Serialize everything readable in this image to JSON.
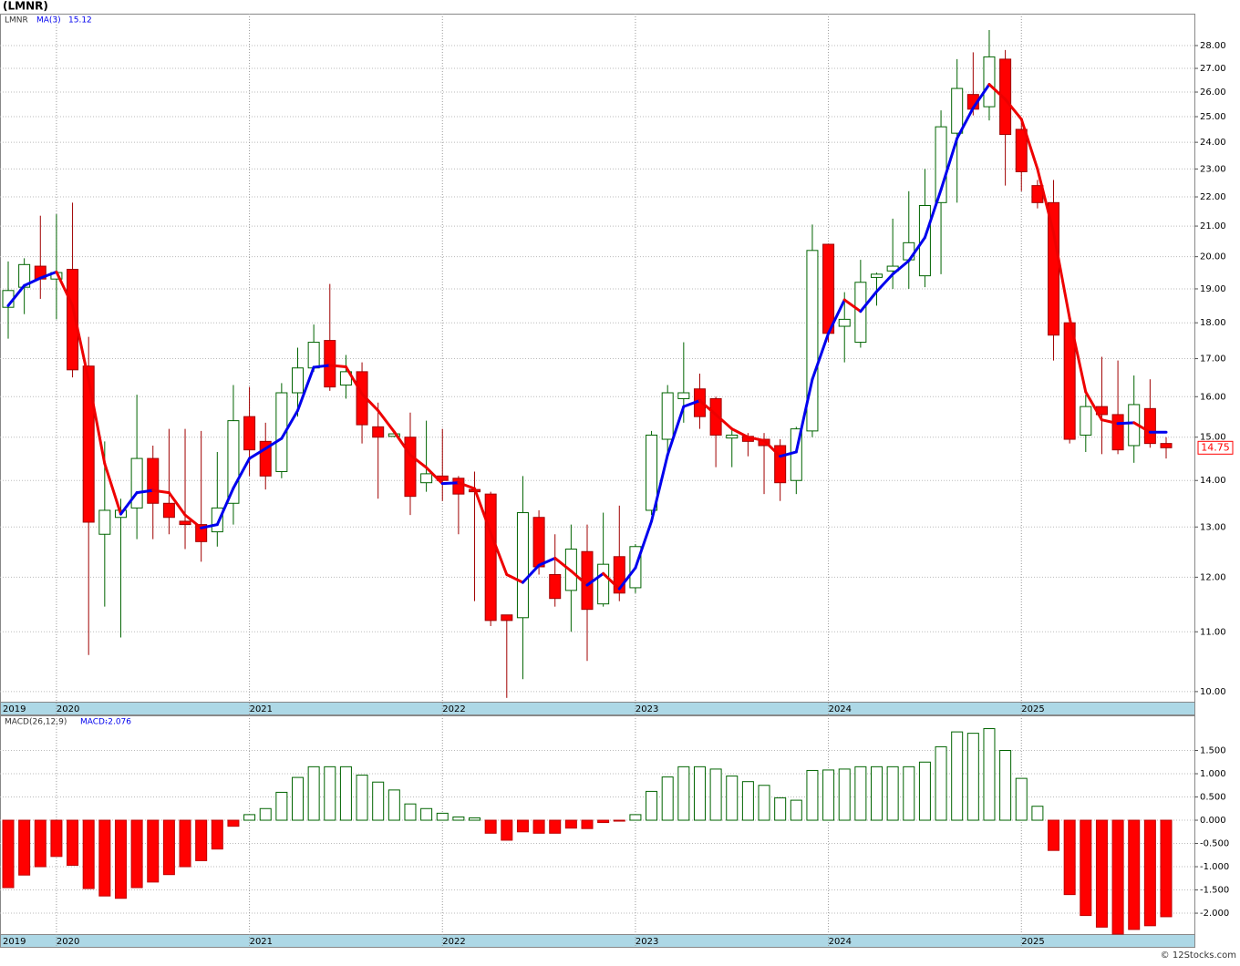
{
  "chart_data": [
    {
      "type": "candlestick",
      "title": "(LMNR)",
      "ticker": "LMNR",
      "log": true,
      "grid": true,
      "up_color": "#006400",
      "down_color": "#ff0000",
      "categories": [
        "2019",
        null,
        null,
        "2020",
        null,
        null,
        null,
        null,
        null,
        null,
        null,
        null,
        null,
        null,
        null,
        "2021",
        null,
        null,
        null,
        null,
        null,
        null,
        null,
        null,
        null,
        null,
        null,
        "2022",
        null,
        null,
        null,
        null,
        null,
        null,
        null,
        null,
        null,
        null,
        null,
        "2023",
        null,
        null,
        null,
        null,
        null,
        null,
        null,
        null,
        null,
        null,
        null,
        "2024",
        null,
        null,
        null,
        null,
        null,
        null,
        null,
        null,
        null,
        null,
        null,
        "2025",
        null,
        null,
        null,
        null,
        null,
        null,
        null,
        null,
        null
      ],
      "open": [
        18.45,
        19.05,
        19.7,
        19.3,
        19.6,
        16.8,
        12.85,
        13.2,
        13.4,
        14.5,
        13.5,
        13.12,
        13.05,
        12.9,
        13.5,
        15.5,
        14.9,
        14.2,
        16.1,
        16.75,
        17.5,
        16.3,
        16.65,
        15.25,
        15.02,
        15.0,
        13.95,
        14.1,
        14.05,
        13.8,
        13.7,
        11.3,
        11.25,
        13.2,
        12.05,
        11.75,
        12.5,
        11.5,
        12.4,
        11.8,
        13.35,
        14.95,
        15.95,
        16.2,
        15.95,
        14.98,
        15.02,
        14.95,
        14.8,
        14.0,
        15.15,
        20.4,
        17.9,
        17.45,
        19.35,
        19.55,
        19.9,
        19.4,
        21.8,
        24.35,
        25.9,
        25.4,
        27.4,
        24.5,
        22.4,
        21.8,
        18.0,
        15.05,
        15.75,
        15.55,
        14.8,
        15.7,
        14.85
      ],
      "high": [
        19.85,
        19.95,
        21.35,
        21.4,
        21.8,
        17.6,
        14.9,
        13.6,
        16.05,
        14.8,
        15.2,
        15.2,
        15.15,
        14.65,
        16.3,
        16.25,
        15.35,
        16.35,
        17.3,
        17.95,
        19.15,
        17.1,
        16.9,
        15.85,
        15.15,
        15.6,
        15.4,
        15.2,
        14.1,
        14.2,
        13.75,
        11.3,
        14.1,
        13.35,
        12.85,
        13.05,
        13.05,
        13.3,
        13.45,
        12.65,
        15.15,
        16.3,
        17.45,
        16.6,
        16.0,
        15.2,
        15.1,
        15.1,
        14.95,
        15.25,
        21.05,
        20.4,
        18.9,
        19.9,
        19.5,
        21.25,
        22.2,
        23.0,
        25.25,
        27.4,
        27.7,
        28.7,
        27.8,
        24.95,
        22.6,
        22.6,
        18.0,
        16.05,
        17.05,
        16.95,
        16.55,
        16.45,
        15.0
      ],
      "low": [
        17.55,
        18.25,
        18.7,
        18.1,
        16.5,
        10.6,
        11.45,
        10.9,
        12.75,
        12.75,
        12.85,
        12.55,
        12.3,
        12.6,
        13.05,
        14.1,
        13.8,
        14.05,
        15.5,
        16.65,
        16.15,
        15.95,
        14.85,
        13.6,
        15.0,
        13.25,
        13.75,
        13.55,
        12.85,
        11.55,
        11.1,
        9.9,
        10.2,
        12.05,
        11.45,
        11.0,
        10.5,
        11.45,
        11.55,
        11.7,
        13.25,
        14.55,
        15.35,
        15.2,
        14.3,
        14.3,
        14.55,
        13.7,
        13.55,
        13.7,
        15.0,
        17.45,
        16.9,
        17.3,
        18.5,
        19.0,
        19.0,
        19.05,
        19.45,
        21.8,
        25.05,
        24.85,
        22.4,
        22.2,
        21.6,
        16.95,
        14.85,
        14.65,
        14.6,
        14.6,
        14.4,
        14.75,
        14.5
      ],
      "close": [
        18.95,
        19.75,
        19.3,
        19.5,
        16.7,
        13.1,
        13.35,
        13.35,
        14.5,
        13.5,
        13.2,
        13.05,
        12.7,
        13.4,
        15.4,
        14.7,
        14.1,
        16.1,
        16.75,
        17.45,
        16.25,
        16.65,
        15.3,
        15.0,
        15.08,
        13.65,
        14.15,
        14.0,
        13.7,
        13.75,
        11.2,
        11.2,
        13.3,
        12.2,
        11.6,
        12.55,
        11.4,
        12.25,
        11.7,
        12.6,
        15.05,
        16.1,
        16.1,
        15.5,
        15.05,
        15.05,
        14.9,
        14.8,
        13.95,
        15.2,
        20.2,
        17.7,
        18.1,
        19.2,
        19.45,
        19.7,
        20.45,
        21.7,
        24.6,
        26.15,
        25.3,
        27.5,
        24.3,
        22.9,
        21.8,
        17.65,
        14.95,
        15.75,
        15.55,
        14.7,
        15.8,
        14.85,
        14.75
      ],
      "ma": {
        "name": "MA(3)",
        "up_color": "#0000ee",
        "down_color": "#ee0000",
        "values": [
          18.5,
          19.1,
          19.33,
          19.52,
          18.5,
          16.43,
          14.38,
          13.27,
          13.73,
          13.78,
          13.73,
          13.25,
          12.98,
          13.05,
          13.83,
          14.5,
          14.73,
          14.97,
          15.65,
          16.77,
          16.82,
          16.78,
          16.07,
          15.65,
          15.13,
          14.58,
          14.29,
          13.93,
          13.95,
          13.82,
          12.88,
          12.05,
          11.9,
          12.23,
          12.37,
          12.12,
          11.85,
          12.07,
          11.78,
          12.18,
          13.12,
          14.58,
          15.75,
          15.9,
          15.55,
          15.2,
          15.0,
          14.92,
          14.55,
          14.65,
          16.45,
          17.7,
          18.67,
          18.33,
          18.92,
          19.45,
          19.87,
          20.62,
          22.25,
          24.15,
          25.35,
          26.32,
          25.7,
          24.9,
          23.0,
          20.78,
          18.13,
          16.12,
          15.42,
          15.33,
          15.35,
          15.12,
          15.12
        ]
      },
      "ylim": [
        9.84,
        29.46
      ],
      "yticks": [
        {
          "value": 10,
          "label": "10.00"
        },
        {
          "value": 11,
          "label": "11.00"
        },
        {
          "value": 12,
          "label": "12.00"
        },
        {
          "value": 13,
          "label": "13.00"
        },
        {
          "value": 14,
          "label": "14.00"
        },
        {
          "value": 15,
          "label": "15.00"
        },
        {
          "value": 16,
          "label": "16.00"
        },
        {
          "value": 17,
          "label": "17.00"
        },
        {
          "value": 18,
          "label": "18.00"
        },
        {
          "value": 19,
          "label": "19.00"
        },
        {
          "value": 20,
          "label": "20.00"
        },
        {
          "value": 21,
          "label": "21.00"
        },
        {
          "value": 22,
          "label": "22.00"
        },
        {
          "value": 23,
          "label": "23.00"
        },
        {
          "value": 24,
          "label": "24.00"
        },
        {
          "value": 25,
          "label": "25.00"
        },
        {
          "value": 26,
          "label": "26.00"
        },
        {
          "value": 27,
          "label": "27.00"
        },
        {
          "value": 28,
          "label": "28.00"
        }
      ]
    },
    {
      "type": "bar",
      "title": "MACD(26,12,9)",
      "value_prefix": "MACD:",
      "grid": true,
      "up_color": "#006400",
      "down_color": "#ff0000",
      "categories": [
        "2019",
        null,
        null,
        "2020",
        null,
        null,
        null,
        null,
        null,
        null,
        null,
        null,
        null,
        null,
        null,
        "2021",
        null,
        null,
        null,
        null,
        null,
        null,
        null,
        null,
        null,
        null,
        null,
        "2022",
        null,
        null,
        null,
        null,
        null,
        null,
        null,
        null,
        null,
        null,
        null,
        "2023",
        null,
        null,
        null,
        null,
        null,
        null,
        null,
        null,
        null,
        null,
        null,
        "2024",
        null,
        null,
        null,
        null,
        null,
        null,
        null,
        null,
        null,
        null,
        null,
        "2025",
        null,
        null,
        null,
        null,
        null,
        null,
        null,
        null,
        null
      ],
      "values": [
        -1.45,
        -1.18,
        -1.0,
        -0.78,
        -0.97,
        -1.47,
        -1.63,
        -1.68,
        -1.45,
        -1.33,
        -1.17,
        -1.0,
        -0.87,
        -0.62,
        -0.13,
        0.12,
        0.25,
        0.6,
        0.92,
        1.15,
        1.15,
        1.15,
        0.97,
        0.82,
        0.65,
        0.35,
        0.25,
        0.15,
        0.07,
        0.05,
        -0.28,
        -0.43,
        -0.25,
        -0.28,
        -0.28,
        -0.17,
        -0.18,
        -0.05,
        -0.02,
        0.12,
        0.62,
        0.93,
        1.15,
        1.15,
        1.1,
        0.95,
        0.83,
        0.75,
        0.48,
        0.43,
        1.07,
        1.08,
        1.1,
        1.15,
        1.15,
        1.15,
        1.15,
        1.25,
        1.58,
        1.9,
        1.87,
        1.97,
        1.5,
        0.9,
        0.3,
        -0.65,
        -1.6,
        -2.05,
        -2.3,
        -2.45,
        -2.35,
        -2.27,
        -2.076
      ],
      "ylim": [
        -2.45,
        2.255
      ],
      "yticks": [
        {
          "value": -2,
          "label": "-2.000"
        },
        {
          "value": -1.5,
          "label": "-1.500"
        },
        {
          "value": -1,
          "label": "-1.000"
        },
        {
          "value": -0.5,
          "label": "-0.500"
        },
        {
          "value": 0,
          "label": "0.000"
        },
        {
          "value": 0.5,
          "label": "0.500"
        },
        {
          "value": 1,
          "label": "1.000"
        },
        {
          "value": 1.5,
          "label": "1.500"
        }
      ]
    }
  ],
  "footer": "© 12Stocks.com"
}
